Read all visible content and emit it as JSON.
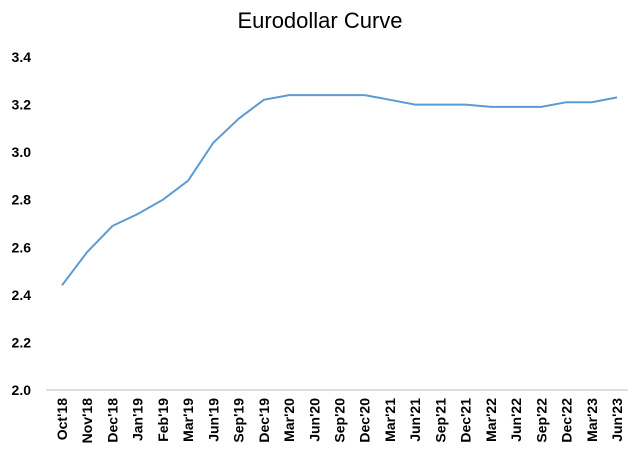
{
  "chart_data": {
    "type": "line",
    "title": "Eurodollar Curve",
    "xlabel": "",
    "ylabel": "",
    "categories": [
      "Oct'18",
      "Nov'18",
      "Dec'18",
      "Jan'19",
      "Feb'19",
      "Mar'19",
      "Jun'19",
      "Sep'19",
      "Dec'19",
      "Mar'20",
      "Jun'20",
      "Sep'20",
      "Dec'20",
      "Mar'21",
      "Jun'21",
      "Sep'21",
      "Dec'21",
      "Mar'22",
      "Jun'22",
      "Sep'22",
      "Dec'22",
      "Mar'23",
      "Jun'23"
    ],
    "series": [
      {
        "values": [
          2.44,
          2.58,
          2.69,
          2.74,
          2.8,
          2.88,
          3.04,
          3.14,
          3.22,
          3.24,
          3.24,
          3.24,
          3.24,
          3.22,
          3.2,
          3.2,
          3.2,
          3.19,
          3.19,
          3.19,
          3.21,
          3.21,
          3.23
        ],
        "color": "#5B9BD5"
      }
    ],
    "ylim": [
      2.0,
      3.4
    ],
    "yticks": [
      "2.0",
      "2.2",
      "2.4",
      "2.6",
      "2.8",
      "3.0",
      "3.2",
      "3.4"
    ],
    "grid": false,
    "legend": "none"
  }
}
